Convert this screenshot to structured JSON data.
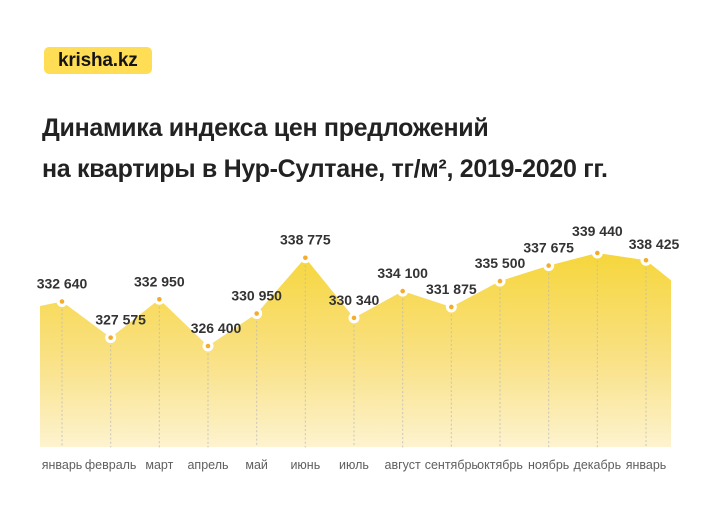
{
  "logo": {
    "text": "krisha.kz",
    "bg_color": "#FFDE55",
    "text_color": "#141414"
  },
  "title": {
    "line1": "Динамика индекса цен предложений",
    "line2": "на квартиры в Нур-Султане, тг/м², 2019-2020 гг.",
    "color": "#222222"
  },
  "chart_data": {
    "type": "area",
    "title": "Динамика индекса цен предложений на квартиры в Нур-Султане, тг/м², 2019-2020 гг.",
    "categories": [
      "январь",
      "февраль",
      "март",
      "апрель",
      "май",
      "июнь",
      "июль",
      "август",
      "сентябрь",
      "октябрь",
      "ноябрь",
      "декабрь",
      "январь"
    ],
    "values": [
      332640,
      327575,
      332950,
      326400,
      330950,
      338775,
      330340,
      334100,
      331875,
      335500,
      337675,
      339440,
      338425
    ],
    "value_labels": [
      "332 640",
      "327 575",
      "332 950",
      "326 400",
      "330 950",
      "338 775",
      "330 340",
      "334 100",
      "331 875",
      "335 500",
      "337 675",
      "339 440",
      "338 425"
    ],
    "unit": "тг/м²",
    "xlabel": "",
    "ylabel": "",
    "ylim": [
      326400,
      339440
    ],
    "legend": "none",
    "grid": "vertical-dotted",
    "colors": {
      "area_top": "#F6D63C",
      "area_mid": "#F9E185",
      "area_bottom": "#FDF3CF",
      "marker_ring": "#FFFFFF",
      "marker_dot": "#F3AC2B",
      "gridline": "#B9B9B9",
      "value_label": "#333333",
      "month_label": "#5F5F5F"
    }
  }
}
